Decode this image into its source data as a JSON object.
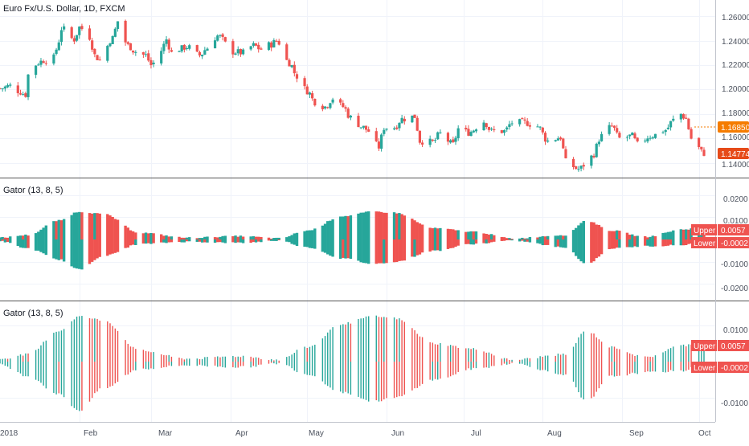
{
  "colors": {
    "up": "#26a69a",
    "down": "#ef5350",
    "grid": "#f0f3fa",
    "axis_text": "#4c525e",
    "separator": "#555555",
    "price_last_label": "#e64a19",
    "price_dotted_label": "#f57c00"
  },
  "main_pane": {
    "title": "Euro Fx/U.S. Dollar, 1D, FXCM",
    "y_ticks": [
      "1.26000",
      "1.24000",
      "1.22000",
      "1.20000",
      "1.18000",
      "1.16000",
      "1.14000"
    ],
    "labels": {
      "dotted_price": "1.16850",
      "last_price": "1.14774"
    }
  },
  "pane2": {
    "title": "Gator (13, 8, 5)",
    "y_ticks": [
      "0.0200",
      "0.0100",
      "-0.0100",
      "-0.0200"
    ],
    "upper_label": "Upper",
    "upper_value": "0.0057",
    "lower_label": "Lower",
    "lower_value": "-0.0002"
  },
  "pane3": {
    "title": "Gator (13, 8, 5)",
    "y_ticks": [
      "0.0100",
      "-0.0100"
    ],
    "upper_label": "Upper",
    "upper_value": "0.0057",
    "lower_label": "Lower",
    "lower_value": "-0.0002"
  },
  "x_axis": {
    "labels": [
      "2018",
      "Feb",
      "Mar",
      "Apr",
      "May",
      "Jun",
      "Jul",
      "Aug",
      "Sep",
      "Oct"
    ]
  },
  "chart_data": [
    {
      "type": "candlestick",
      "title": "Euro Fx/U.S. Dollar, 1D, FXCM",
      "x_range": [
        "2018-01-01",
        "2018-10-03"
      ],
      "ylim": [
        1.13,
        1.268
      ],
      "close_path": [
        [
          "2018-01-01",
          1.201
        ],
        [
          "2018-01-05",
          1.203
        ],
        [
          "2018-01-08",
          1.199
        ],
        [
          "2018-01-11",
          1.196
        ],
        [
          "2018-01-12",
          1.212
        ],
        [
          "2018-01-16",
          1.222
        ],
        [
          "2018-01-18",
          1.224
        ],
        [
          "2018-01-22",
          1.226
        ],
        [
          "2018-01-24",
          1.24
        ],
        [
          "2018-01-25",
          1.25
        ],
        [
          "2018-01-30",
          1.241
        ],
        [
          "2018-02-01",
          1.251
        ],
        [
          "2018-02-05",
          1.243
        ],
        [
          "2018-02-07",
          1.228
        ],
        [
          "2018-02-09",
          1.224
        ],
        [
          "2018-02-14",
          1.242
        ],
        [
          "2018-02-16",
          1.256
        ],
        [
          "2018-02-20",
          1.236
        ],
        [
          "2018-02-23",
          1.231
        ],
        [
          "2018-02-27",
          1.228
        ],
        [
          "2018-03-01",
          1.22
        ],
        [
          "2018-03-05",
          1.232
        ],
        [
          "2018-03-07",
          1.241
        ],
        [
          "2018-03-09",
          1.23
        ],
        [
          "2018-03-12",
          1.233
        ],
        [
          "2018-03-15",
          1.235
        ],
        [
          "2018-03-20",
          1.228
        ],
        [
          "2018-03-23",
          1.234
        ],
        [
          "2018-03-27",
          1.244
        ],
        [
          "2018-04-02",
          1.231
        ],
        [
          "2018-04-06",
          1.23
        ],
        [
          "2018-04-10",
          1.236
        ],
        [
          "2018-04-13",
          1.233
        ],
        [
          "2018-04-17",
          1.237
        ],
        [
          "2018-04-19",
          1.24
        ],
        [
          "2018-04-24",
          1.222
        ],
        [
          "2018-04-27",
          1.211
        ],
        [
          "2018-05-01",
          1.199
        ],
        [
          "2018-05-04",
          1.19
        ],
        [
          "2018-05-08",
          1.186
        ],
        [
          "2018-05-11",
          1.193
        ],
        [
          "2018-05-15",
          1.186
        ],
        [
          "2018-05-18",
          1.177
        ],
        [
          "2018-05-23",
          1.169
        ],
        [
          "2018-05-25",
          1.166
        ],
        [
          "2018-05-29",
          1.153
        ],
        [
          "2018-05-31",
          1.169
        ],
        [
          "2018-06-04",
          1.169
        ],
        [
          "2018-06-07",
          1.176
        ],
        [
          "2018-06-12",
          1.178
        ],
        [
          "2018-06-14",
          1.158
        ],
        [
          "2018-06-19",
          1.157
        ],
        [
          "2018-06-22",
          1.164
        ],
        [
          "2018-06-27",
          1.155
        ],
        [
          "2018-06-29",
          1.168
        ],
        [
          "2018-07-03",
          1.165
        ],
        [
          "2018-07-09",
          1.174
        ],
        [
          "2018-07-12",
          1.166
        ],
        [
          "2018-07-17",
          1.166
        ],
        [
          "2018-07-20",
          1.173
        ],
        [
          "2018-07-25",
          1.173
        ],
        [
          "2018-07-30",
          1.17
        ],
        [
          "2018-08-03",
          1.158
        ],
        [
          "2018-08-08",
          1.161
        ],
        [
          "2018-08-10",
          1.141
        ],
        [
          "2018-08-15",
          1.135
        ],
        [
          "2018-08-20",
          1.145
        ],
        [
          "2018-08-24",
          1.162
        ],
        [
          "2018-08-28",
          1.17
        ],
        [
          "2018-08-31",
          1.16
        ],
        [
          "2018-09-05",
          1.162
        ],
        [
          "2018-09-07",
          1.155
        ],
        [
          "2018-09-12",
          1.162
        ],
        [
          "2018-09-14",
          1.163
        ],
        [
          "2018-09-18",
          1.167
        ],
        [
          "2018-09-21",
          1.175
        ],
        [
          "2018-09-24",
          1.18
        ],
        [
          "2018-09-26",
          1.176
        ],
        [
          "2018-09-28",
          1.16
        ],
        [
          "2018-10-03",
          1.148
        ]
      ],
      "last_price": 1.14774,
      "dotted_price": 1.1685
    },
    {
      "type": "bar",
      "title": "Gator (13, 8, 5)",
      "series": [
        {
          "name": "Upper"
        },
        {
          "name": "Lower"
        }
      ],
      "ylim": [
        -0.026,
        0.026
      ],
      "x_range": [
        "2018-01-01",
        "2018-10-03"
      ],
      "upper_envelope": [
        [
          "2018-01-01",
          0.0008
        ],
        [
          "2018-01-12",
          0.002
        ],
        [
          "2018-01-24",
          0.0085
        ],
        [
          "2018-02-01",
          0.0125
        ],
        [
          "2018-02-10",
          0.0115
        ],
        [
          "2018-02-25",
          0.003
        ],
        [
          "2018-03-15",
          0.0008
        ],
        [
          "2018-04-05",
          0.0015
        ],
        [
          "2018-04-20",
          0.0005
        ],
        [
          "2018-05-01",
          0.004
        ],
        [
          "2018-05-15",
          0.0105
        ],
        [
          "2018-05-27",
          0.0125
        ],
        [
          "2018-06-04",
          0.012
        ],
        [
          "2018-06-20",
          0.005
        ],
        [
          "2018-07-05",
          0.0035
        ],
        [
          "2018-07-20",
          0.0005
        ],
        [
          "2018-08-10",
          0.002
        ],
        [
          "2018-08-18",
          0.0085
        ],
        [
          "2018-08-28",
          0.004
        ],
        [
          "2018-09-10",
          0.0012
        ],
        [
          "2018-09-25",
          0.0045
        ],
        [
          "2018-10-03",
          0.0057
        ]
      ],
      "lower_envelope": [
        [
          "2018-01-01",
          -0.0008
        ],
        [
          "2018-01-12",
          -0.004
        ],
        [
          "2018-01-24",
          -0.009
        ],
        [
          "2018-02-01",
          -0.0135
        ],
        [
          "2018-02-10",
          -0.0075
        ],
        [
          "2018-02-25",
          -0.002
        ],
        [
          "2018-03-15",
          -0.001
        ],
        [
          "2018-04-05",
          -0.0015
        ],
        [
          "2018-04-20",
          -0.0005
        ],
        [
          "2018-05-01",
          -0.0035
        ],
        [
          "2018-05-15",
          -0.0085
        ],
        [
          "2018-05-27",
          -0.011
        ],
        [
          "2018-06-04",
          -0.01
        ],
        [
          "2018-06-20",
          -0.005
        ],
        [
          "2018-07-05",
          -0.002
        ],
        [
          "2018-07-20",
          -0.0005
        ],
        [
          "2018-08-10",
          -0.0035
        ],
        [
          "2018-08-18",
          -0.011
        ],
        [
          "2018-08-28",
          -0.004
        ],
        [
          "2018-09-10",
          -0.003
        ],
        [
          "2018-09-25",
          -0.0025
        ],
        [
          "2018-10-03",
          -0.0002
        ]
      ]
    },
    {
      "type": "bar",
      "title": "Gator (13, 8, 5)",
      "series": [
        {
          "name": "Upper"
        },
        {
          "name": "Lower"
        }
      ],
      "ylim": [
        -0.016,
        0.016
      ],
      "x_range": [
        "2018-01-01",
        "2018-10-03"
      ],
      "upper_envelope": [
        [
          "2018-01-01",
          0.0008
        ],
        [
          "2018-01-12",
          0.002
        ],
        [
          "2018-01-24",
          0.0085
        ],
        [
          "2018-02-01",
          0.0125
        ],
        [
          "2018-02-10",
          0.0115
        ],
        [
          "2018-02-25",
          0.003
        ],
        [
          "2018-03-15",
          0.0008
        ],
        [
          "2018-04-05",
          0.0015
        ],
        [
          "2018-04-20",
          0.0005
        ],
        [
          "2018-05-01",
          0.004
        ],
        [
          "2018-05-15",
          0.0105
        ],
        [
          "2018-05-27",
          0.0125
        ],
        [
          "2018-06-04",
          0.012
        ],
        [
          "2018-06-20",
          0.005
        ],
        [
          "2018-07-05",
          0.0035
        ],
        [
          "2018-07-20",
          0.0005
        ],
        [
          "2018-08-10",
          0.002
        ],
        [
          "2018-08-18",
          0.0085
        ],
        [
          "2018-08-28",
          0.004
        ],
        [
          "2018-09-10",
          0.0012
        ],
        [
          "2018-09-25",
          0.0045
        ],
        [
          "2018-10-03",
          0.0057
        ]
      ],
      "lower_envelope": [
        [
          "2018-01-01",
          -0.0008
        ],
        [
          "2018-01-12",
          -0.004
        ],
        [
          "2018-01-24",
          -0.009
        ],
        [
          "2018-02-01",
          -0.0135
        ],
        [
          "2018-02-10",
          -0.0075
        ],
        [
          "2018-02-25",
          -0.002
        ],
        [
          "2018-03-15",
          -0.001
        ],
        [
          "2018-04-05",
          -0.0015
        ],
        [
          "2018-04-20",
          -0.0005
        ],
        [
          "2018-05-01",
          -0.0035
        ],
        [
          "2018-05-15",
          -0.0085
        ],
        [
          "2018-05-27",
          -0.011
        ],
        [
          "2018-06-04",
          -0.01
        ],
        [
          "2018-06-20",
          -0.005
        ],
        [
          "2018-07-05",
          -0.002
        ],
        [
          "2018-07-20",
          -0.0005
        ],
        [
          "2018-08-10",
          -0.0035
        ],
        [
          "2018-08-18",
          -0.011
        ],
        [
          "2018-08-28",
          -0.004
        ],
        [
          "2018-09-10",
          -0.003
        ],
        [
          "2018-09-25",
          -0.0025
        ],
        [
          "2018-10-03",
          -0.0002
        ]
      ]
    }
  ]
}
